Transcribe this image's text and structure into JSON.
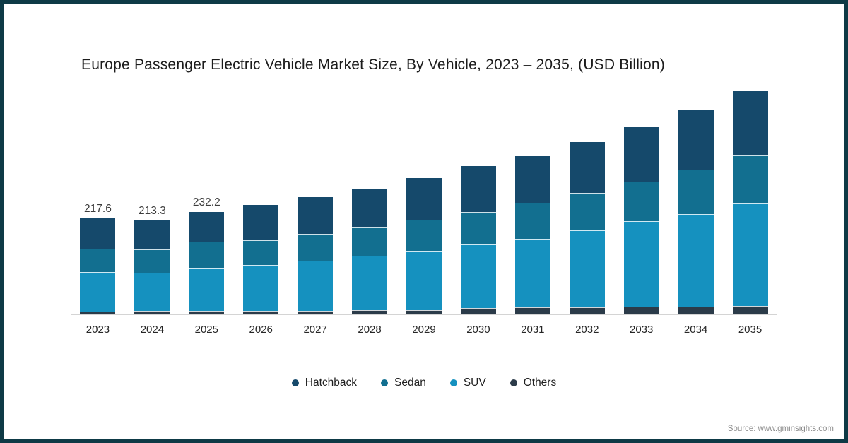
{
  "chart_data": {
    "type": "bar",
    "subtype": "stacked-vertical",
    "title": "Europe Passenger Electric Vehicle Market Size, By Vehicle, 2023 – 2035, (USD Billion)",
    "categories": [
      "2023",
      "2024",
      "2025",
      "2026",
      "2027",
      "2028",
      "2029",
      "2030",
      "2031",
      "2032",
      "2033",
      "2034",
      "2035"
    ],
    "series": [
      {
        "name": "Hatchback",
        "color": "#15496b",
        "values": [
          70.8,
          68.0,
          67.9,
          82.1,
          85.4,
          88.7,
          96.9,
          106.7,
          108.4,
          118.2,
          126.4,
          137.9,
          149.4
        ]
      },
      {
        "name": "Sedan",
        "color": "#126f90",
        "values": [
          50.9,
          51.5,
          61.3,
          55.8,
          60.8,
          65.7,
          70.6,
          73.9,
          82.1,
          85.4,
          90.3,
          101.8,
          109.2
        ]
      },
      {
        "name": "SUV",
        "color": "#1591bf",
        "values": [
          90.2,
          88.0,
          97.2,
          105.1,
          114.1,
          124.8,
          134.7,
          145.4,
          157.1,
          176.3,
          196.8,
          211.8,
          236.9
        ]
      },
      {
        "name": "Others",
        "color": "#2b3b49",
        "values": [
          5.7,
          5.8,
          5.8,
          6.2,
          6.8,
          7.6,
          9.0,
          13.0,
          14.5,
          15.0,
          15.8,
          17.2,
          17.5
        ]
      }
    ],
    "totals": [
      217.6,
      213.3,
      232.2,
      249.2,
      267.1,
      286.8,
      311.2,
      339.0,
      362.1,
      394.9,
      429.3,
      468.7,
      513.0
    ],
    "bar_labels": [
      "217.6",
      "213.3",
      "232.2",
      null,
      null,
      null,
      null,
      null,
      null,
      null,
      null,
      null,
      null
    ],
    "xlabel": "",
    "ylabel": "",
    "value_axis_visible": false,
    "grid": false,
    "legend_position": "bottom",
    "stack_order_bottom_to_top": [
      "Others",
      "SUV",
      "Sedan",
      "Hatchback"
    ]
  },
  "source_note": "Source: www.gminsights.com",
  "frame_color": "#0e3a46",
  "axis_line_color": "#d4d4d4"
}
